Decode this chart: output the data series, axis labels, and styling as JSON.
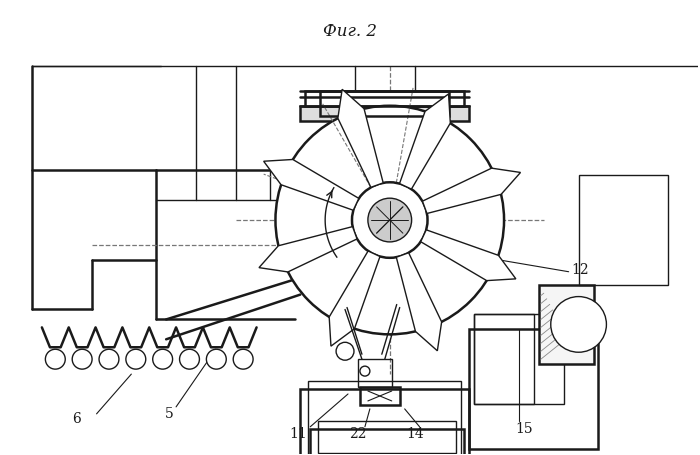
{
  "bg_color": "#ffffff",
  "line_color": "#1a1a1a",
  "dashed_color": "#777777",
  "title": "Фиг. 2",
  "figsize": [
    7.0,
    4.55
  ],
  "dpi": 100
}
